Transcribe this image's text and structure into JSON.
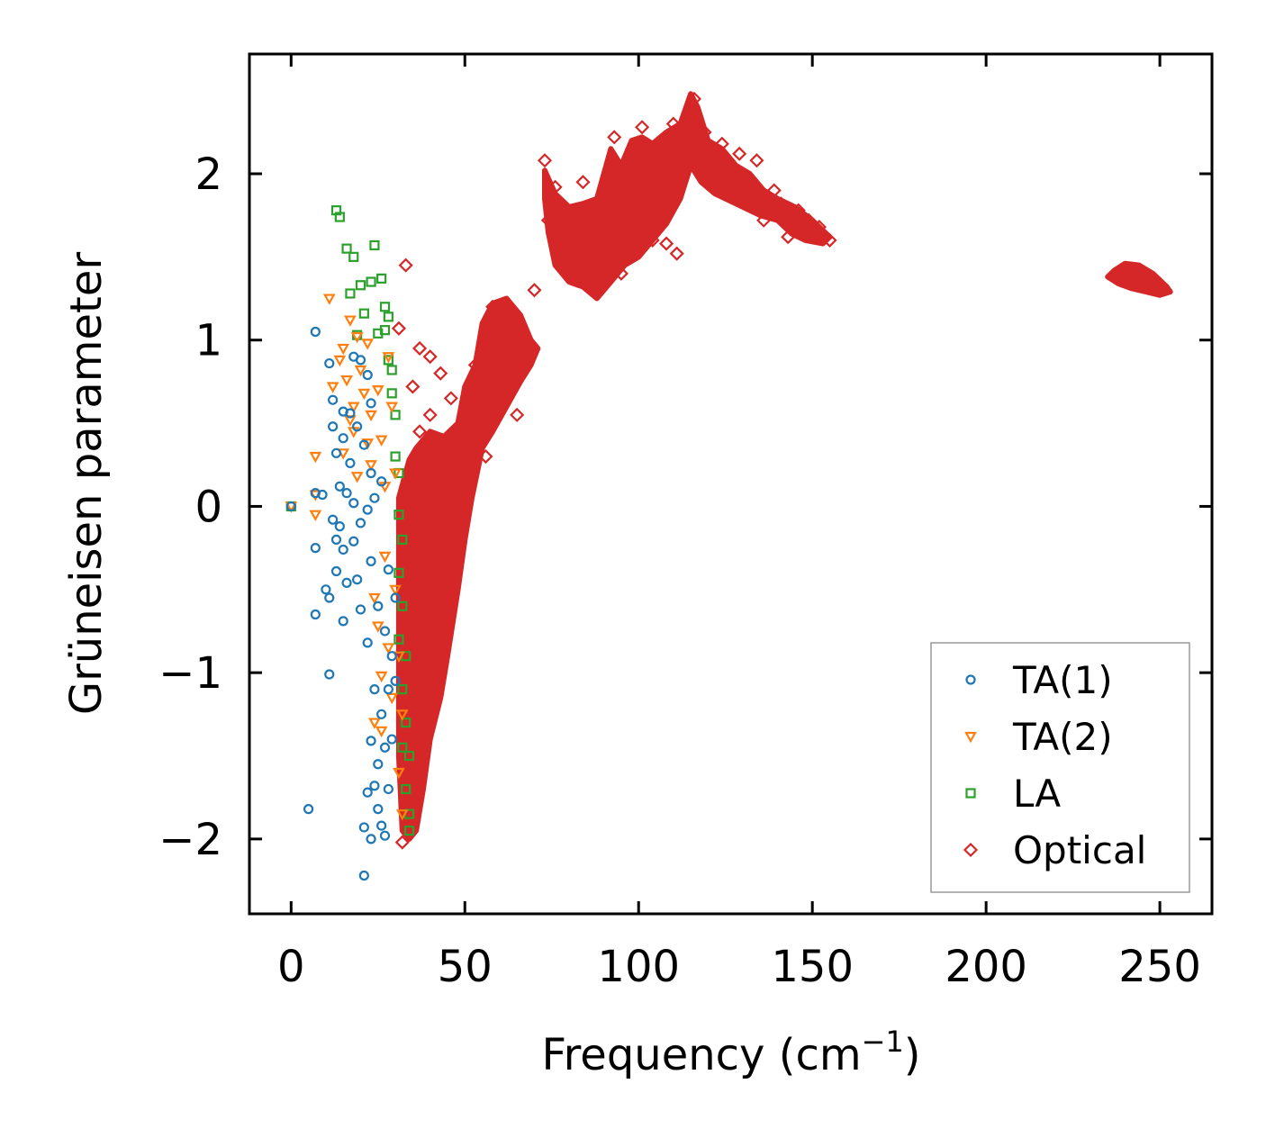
{
  "chart_data": {
    "type": "scatter",
    "xlabel": "Frequency (cm",
    "xlabel_sup": "−1",
    "xlabel_close": ")",
    "ylabel": "Grüneisen parameter",
    "xlim": [
      -12,
      265
    ],
    "ylim": [
      -2.45,
      2.72
    ],
    "xticks": [
      0,
      50,
      100,
      150,
      200,
      250
    ],
    "yticks": [
      -2,
      -1,
      0,
      1,
      2
    ],
    "xtick_labels": [
      "0",
      "50",
      "100",
      "150",
      "200",
      "250"
    ],
    "ytick_labels": [
      "−2",
      "−1",
      "0",
      "1",
      "2"
    ],
    "legend_position": "bottom-right",
    "series": [
      {
        "name": "TA(1)",
        "marker": "circle",
        "color": "#1f77b4",
        "points": [
          [
            0,
            0
          ],
          [
            5,
            -1.82
          ],
          [
            7,
            1.05
          ],
          [
            7,
            0.08
          ],
          [
            7,
            -0.25
          ],
          [
            7,
            -0.65
          ],
          [
            9,
            0.07
          ],
          [
            10,
            -0.5
          ],
          [
            11,
            0.86
          ],
          [
            11,
            -1.01
          ],
          [
            11,
            -0.55
          ],
          [
            12,
            0.64
          ],
          [
            12,
            0.48
          ],
          [
            12,
            -0.08
          ],
          [
            13,
            0.32
          ],
          [
            13,
            -0.2
          ],
          [
            13,
            -0.39
          ],
          [
            14,
            0.12
          ],
          [
            14,
            -0.12
          ],
          [
            15,
            0.57
          ],
          [
            15,
            0.41
          ],
          [
            15,
            -0.26
          ],
          [
            15,
            -0.69
          ],
          [
            16,
            0.08
          ],
          [
            16,
            -0.46
          ],
          [
            17,
            0.56
          ],
          [
            17,
            0.26
          ],
          [
            18,
            0.9
          ],
          [
            18,
            0.02
          ],
          [
            18,
            -0.21
          ],
          [
            19,
            0.48
          ],
          [
            19,
            -0.44
          ],
          [
            20,
            0.88
          ],
          [
            20,
            -0.1
          ],
          [
            20,
            -0.62
          ],
          [
            21,
            0.37
          ],
          [
            21,
            -1.93
          ],
          [
            21,
            -2.22
          ],
          [
            22,
            0.79
          ],
          [
            22,
            -0.02
          ],
          [
            22,
            -0.82
          ],
          [
            22,
            -1.72
          ],
          [
            23,
            0.62
          ],
          [
            23,
            0.2
          ],
          [
            23,
            -0.33
          ],
          [
            23,
            -1.41
          ],
          [
            23,
            -2.0
          ],
          [
            24,
            0.05
          ],
          [
            24,
            -1.1
          ],
          [
            24,
            -1.68
          ],
          [
            25,
            -0.6
          ],
          [
            25,
            -1.55
          ],
          [
            25,
            -1.82
          ],
          [
            26,
            0.15
          ],
          [
            26,
            -1.25
          ],
          [
            26,
            -1.92
          ],
          [
            27,
            -0.75
          ],
          [
            27,
            -1.45
          ],
          [
            27,
            -1.98
          ],
          [
            28,
            -0.38
          ],
          [
            28,
            -1.1
          ],
          [
            28,
            -1.7
          ],
          [
            29,
            -0.9
          ],
          [
            29,
            -1.4
          ],
          [
            30,
            -0.55
          ],
          [
            30,
            -1.05
          ]
        ]
      },
      {
        "name": "TA(2)",
        "marker": "triangle",
        "color": "#ff7f0e",
        "points": [
          [
            0,
            0
          ],
          [
            7,
            0.07
          ],
          [
            7,
            -0.05
          ],
          [
            7,
            0.3
          ],
          [
            11,
            1.25
          ],
          [
            12,
            0.72
          ],
          [
            14,
            0.88
          ],
          [
            15,
            0.95
          ],
          [
            15,
            0.32
          ],
          [
            16,
            0.76
          ],
          [
            17,
            1.12
          ],
          [
            17,
            0.52
          ],
          [
            18,
            0.6
          ],
          [
            18,
            0.45
          ],
          [
            19,
            1.02
          ],
          [
            19,
            0.18
          ],
          [
            20,
            0.82
          ],
          [
            21,
            0.68
          ],
          [
            22,
            0.98
          ],
          [
            22,
            0.38
          ],
          [
            23,
            0.55
          ],
          [
            23,
            0.25
          ],
          [
            24,
            -0.55
          ],
          [
            24,
            -1.3
          ],
          [
            25,
            0.7
          ],
          [
            25,
            -0.72
          ],
          [
            26,
            0.4
          ],
          [
            26,
            -1.02
          ],
          [
            26,
            -1.35
          ],
          [
            27,
            0.12
          ],
          [
            27,
            -0.3
          ],
          [
            28,
            0.9
          ],
          [
            28,
            -0.85
          ],
          [
            29,
            0.6
          ],
          [
            29,
            -1.15
          ],
          [
            30,
            0.2
          ],
          [
            30,
            -0.5
          ],
          [
            31,
            -0.9
          ],
          [
            31,
            -1.6
          ],
          [
            32,
            -1.25
          ],
          [
            32,
            -1.85
          ]
        ]
      },
      {
        "name": "LA",
        "marker": "square",
        "color": "#2ca02c",
        "points": [
          [
            0,
            0
          ],
          [
            13,
            1.78
          ],
          [
            14,
            1.74
          ],
          [
            16,
            1.55
          ],
          [
            17,
            1.28
          ],
          [
            18,
            1.5
          ],
          [
            19,
            1.03
          ],
          [
            20,
            1.33
          ],
          [
            21,
            1.16
          ],
          [
            23,
            1.35
          ],
          [
            24,
            1.57
          ],
          [
            25,
            1.04
          ],
          [
            26,
            1.37
          ],
          [
            27,
            1.2
          ],
          [
            27,
            1.06
          ],
          [
            28,
            0.88
          ],
          [
            28,
            1.14
          ],
          [
            29,
            0.82
          ],
          [
            29,
            0.68
          ],
          [
            30,
            0.55
          ],
          [
            30,
            0.3
          ],
          [
            31,
            0.2
          ],
          [
            31,
            -0.05
          ],
          [
            31,
            -0.4
          ],
          [
            31,
            -0.8
          ],
          [
            32,
            -0.2
          ],
          [
            32,
            -0.6
          ],
          [
            32,
            -1.1
          ],
          [
            32,
            -1.45
          ],
          [
            33,
            -0.9
          ],
          [
            33,
            -1.3
          ],
          [
            33,
            -1.7
          ],
          [
            34,
            -1.5
          ],
          [
            34,
            -1.85
          ],
          [
            34,
            -1.95
          ]
        ]
      },
      {
        "name": "Optical",
        "marker": "diamond",
        "color": "#d62728",
        "points": [
          [
            31,
            1.07
          ],
          [
            32,
            -2.02
          ],
          [
            32,
            -1.6
          ],
          [
            33,
            1.45
          ],
          [
            33,
            -0.9
          ],
          [
            35,
            0.72
          ],
          [
            35,
            -1.3
          ],
          [
            37,
            0.95
          ],
          [
            37,
            0.45
          ],
          [
            37,
            -0.4
          ],
          [
            40,
            0.9
          ],
          [
            40,
            0.55
          ],
          [
            40,
            -0.2
          ],
          [
            42,
            -0.9
          ],
          [
            43,
            0.8
          ],
          [
            45,
            0.4
          ],
          [
            46,
            0.65
          ],
          [
            48,
            -0.1
          ],
          [
            50,
            0.5
          ],
          [
            53,
            0.85
          ],
          [
            56,
            0.3
          ],
          [
            58,
            1.2
          ],
          [
            62,
            0.8
          ],
          [
            65,
            0.55
          ],
          [
            70,
            1.3
          ],
          [
            73,
            2.08
          ],
          [
            74,
            1.72
          ],
          [
            76,
            1.92
          ],
          [
            78,
            1.45
          ],
          [
            80,
            1.62
          ],
          [
            84,
            1.95
          ],
          [
            86,
            1.32
          ],
          [
            88,
            1.28
          ],
          [
            90,
            1.78
          ],
          [
            93,
            2.22
          ],
          [
            95,
            1.4
          ],
          [
            97,
            2.0
          ],
          [
            99,
            1.55
          ],
          [
            101,
            2.28
          ],
          [
            104,
            1.6
          ],
          [
            106,
            1.85
          ],
          [
            108,
            1.58
          ],
          [
            110,
            2.3
          ],
          [
            111,
            1.52
          ],
          [
            114,
            2.18
          ],
          [
            116,
            2.45
          ],
          [
            119,
            2.25
          ],
          [
            121,
            1.95
          ],
          [
            124,
            2.18
          ],
          [
            126,
            1.88
          ],
          [
            129,
            2.12
          ],
          [
            131,
            1.82
          ],
          [
            134,
            2.08
          ],
          [
            136,
            1.72
          ],
          [
            139,
            1.9
          ],
          [
            141,
            1.82
          ],
          [
            143,
            1.62
          ],
          [
            146,
            1.78
          ],
          [
            149,
            1.72
          ],
          [
            152,
            1.68
          ],
          [
            155,
            1.6
          ]
        ]
      }
    ],
    "bands": [
      {
        "series": "Optical",
        "color": "#d62728",
        "polygon": [
          [
            31,
            0.05
          ],
          [
            34,
            0.28
          ],
          [
            36,
            0.35
          ],
          [
            40,
            0.45
          ],
          [
            44,
            0.42
          ],
          [
            48,
            0.5
          ],
          [
            50,
            0.72
          ],
          [
            53,
            0.85
          ],
          [
            55,
            1.1
          ],
          [
            58,
            1.22
          ],
          [
            62,
            1.25
          ],
          [
            66,
            1.15
          ],
          [
            69,
            1.0
          ],
          [
            71,
            0.95
          ],
          [
            69,
            0.85
          ],
          [
            66,
            0.75
          ],
          [
            62,
            0.6
          ],
          [
            58,
            0.45
          ],
          [
            55,
            0.35
          ],
          [
            52,
            0.05
          ],
          [
            50,
            -0.2
          ],
          [
            48,
            -0.5
          ],
          [
            45,
            -0.9
          ],
          [
            43,
            -1.15
          ],
          [
            40,
            -1.4
          ],
          [
            38,
            -1.7
          ],
          [
            36,
            -1.95
          ],
          [
            34,
            -2.0
          ],
          [
            32,
            -1.95
          ],
          [
            31,
            -1.5
          ],
          [
            31,
            -0.8
          ],
          [
            31,
            -0.3
          ]
        ]
      },
      {
        "series": "Optical",
        "color": "#d62728",
        "polygon": [
          [
            73,
            2.02
          ],
          [
            76,
            1.88
          ],
          [
            80,
            1.8
          ],
          [
            84,
            1.82
          ],
          [
            88,
            1.85
          ],
          [
            92,
            2.15
          ],
          [
            95,
            2.05
          ],
          [
            98,
            2.2
          ],
          [
            101,
            2.22
          ],
          [
            104,
            2.18
          ],
          [
            108,
            2.25
          ],
          [
            112,
            2.3
          ],
          [
            115,
            2.48
          ],
          [
            117,
            2.4
          ],
          [
            120,
            2.2
          ],
          [
            124,
            2.15
          ],
          [
            128,
            2.05
          ],
          [
            132,
            2.0
          ],
          [
            136,
            1.9
          ],
          [
            140,
            1.85
          ],
          [
            145,
            1.8
          ],
          [
            150,
            1.72
          ],
          [
            155,
            1.62
          ],
          [
            153,
            1.58
          ],
          [
            148,
            1.6
          ],
          [
            144,
            1.64
          ],
          [
            140,
            1.72
          ],
          [
            135,
            1.75
          ],
          [
            130,
            1.8
          ],
          [
            126,
            1.84
          ],
          [
            122,
            1.88
          ],
          [
            118,
            1.95
          ],
          [
            115,
            2.05
          ],
          [
            112,
            1.85
          ],
          [
            108,
            1.7
          ],
          [
            104,
            1.6
          ],
          [
            100,
            1.5
          ],
          [
            96,
            1.45
          ],
          [
            92,
            1.35
          ],
          [
            88,
            1.25
          ],
          [
            84,
            1.32
          ],
          [
            80,
            1.35
          ],
          [
            76,
            1.45
          ],
          [
            74,
            1.65
          ],
          [
            73,
            1.85
          ]
        ]
      },
      {
        "series": "Optical",
        "color": "#d62728",
        "polygon": [
          [
            235,
            1.38
          ],
          [
            237,
            1.42
          ],
          [
            240,
            1.46
          ],
          [
            244,
            1.45
          ],
          [
            248,
            1.4
          ],
          [
            252,
            1.32
          ],
          [
            253,
            1.29
          ],
          [
            250,
            1.27
          ],
          [
            246,
            1.29
          ],
          [
            242,
            1.31
          ],
          [
            238,
            1.34
          ]
        ]
      }
    ]
  }
}
